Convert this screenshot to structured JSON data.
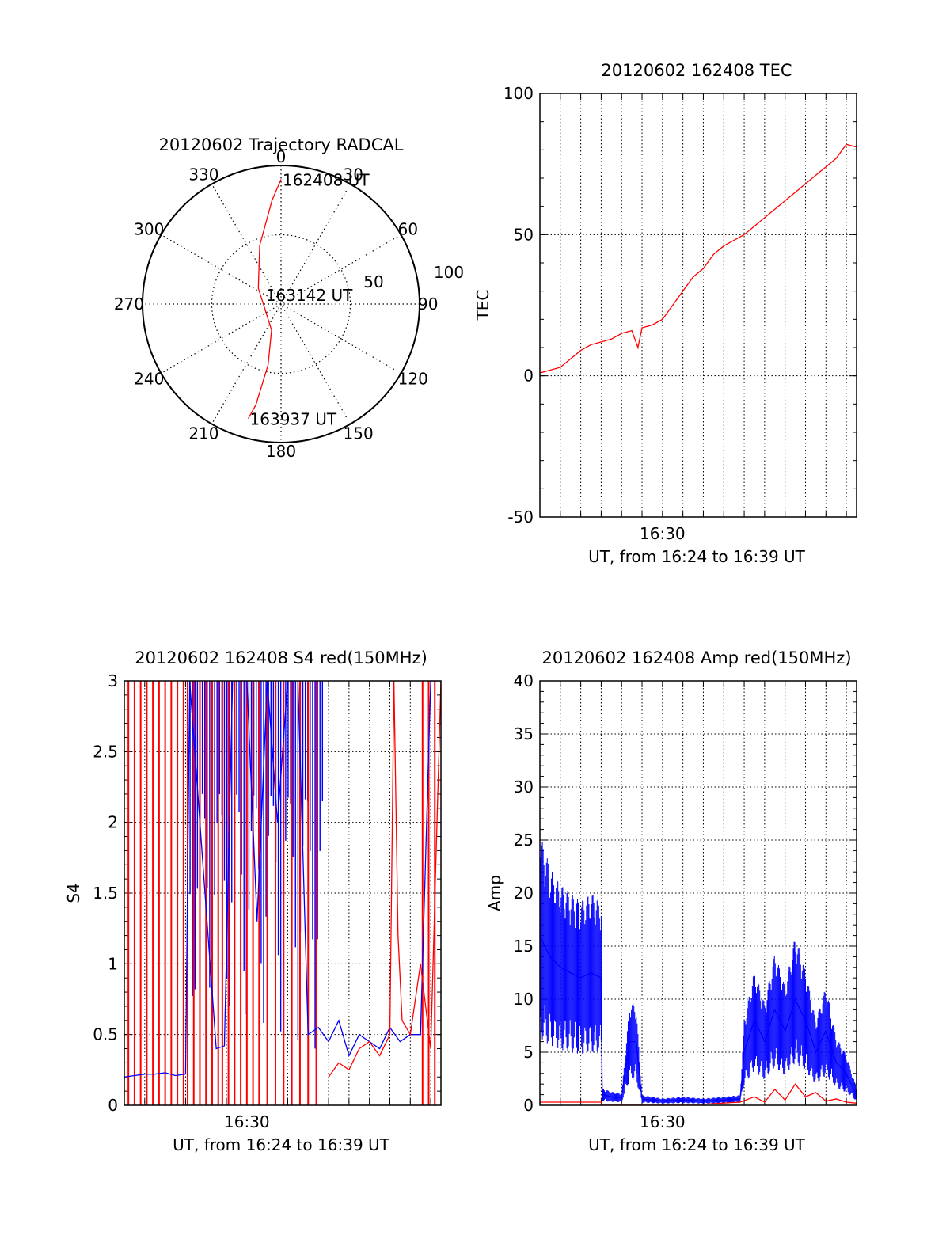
{
  "chart_data": [
    {
      "type": "polar",
      "title": "20120602 Trajectory RADCAL",
      "angle_labels": [
        "0",
        "30",
        "60",
        "90",
        "120",
        "150",
        "180",
        "210",
        "240",
        "270",
        "300",
        "330"
      ],
      "radial_labels": [
        "50",
        "100"
      ],
      "radial_max": 100,
      "trajectory": {
        "color": "#ff0000",
        "points": [
          {
            "az": 0,
            "r": 90
          },
          {
            "az": 355,
            "r": 75
          },
          {
            "az": 340,
            "r": 45
          },
          {
            "az": 305,
            "r": 20
          },
          {
            "az": 200,
            "r": 20
          },
          {
            "az": 192,
            "r": 45
          },
          {
            "az": 194,
            "r": 75
          },
          {
            "az": 196,
            "r": 86
          }
        ],
        "annotations": [
          {
            "text": "162408 UT",
            "az": 0,
            "r": 90
          },
          {
            "text": "163142 UT",
            "az": 300,
            "r": 14
          },
          {
            "text": "163937 UT",
            "az": 196,
            "r": 86
          }
        ]
      }
    },
    {
      "type": "line",
      "title": "20120602 162408 TEC",
      "xlabel": "UT, from 16:24 to 16:39 UT",
      "ylabel": "TEC",
      "xlim": [
        0,
        15.5
      ],
      "ylim": [
        -50,
        100
      ],
      "yticks": [
        -50,
        0,
        50,
        100
      ],
      "xtick_labels": [
        {
          "label": "16:30",
          "x": 6
        }
      ],
      "series": [
        {
          "color": "#ff0000",
          "x": [
            0,
            0.5,
            1,
            1.5,
            2,
            2.5,
            3,
            3.5,
            4,
            4.5,
            4.8,
            5,
            5.5,
            6,
            6.5,
            7,
            7.5,
            8,
            8.5,
            9,
            9.5,
            10,
            10.5,
            11,
            11.5,
            12,
            12.5,
            13,
            13.5,
            14,
            14.5,
            15,
            15.5
          ],
          "y": [
            1,
            2,
            3,
            6,
            9,
            11,
            12,
            13,
            15,
            16,
            10,
            17,
            18,
            20,
            25,
            30,
            35,
            38,
            43,
            46,
            48,
            50,
            53,
            56,
            59,
            62,
            65,
            68,
            71,
            74,
            77,
            82,
            81
          ]
        }
      ]
    },
    {
      "type": "line",
      "title": "20120602 162408 S4 red(150MHz)",
      "xlabel": "UT, from 16:24 to 16:39 UT",
      "ylabel": "S4",
      "xlim": [
        0,
        15.5
      ],
      "ylim": [
        0,
        3
      ],
      "yticks": [
        0,
        0.5,
        1,
        1.5,
        2,
        2.5,
        3
      ],
      "ytick_labels": [
        "0",
        "0.5",
        "1",
        "1.5",
        "2",
        "2.5",
        "3"
      ],
      "xtick_labels": [
        {
          "label": "16:30",
          "x": 6
        }
      ],
      "series": [
        {
          "color": "#0000ff",
          "x": [
            0,
            0.5,
            1,
            1.5,
            2,
            2.5,
            3,
            3.2,
            4.5,
            4.9,
            5.3,
            6,
            6.5,
            7,
            7.5,
            8,
            8.5,
            9,
            9.5,
            10,
            10.5,
            11,
            11.5,
            12,
            12.5,
            13,
            13.5,
            14,
            14.5,
            15,
            15.5
          ],
          "y": [
            0.2,
            0.21,
            0.22,
            0.22,
            0.23,
            0.21,
            0.22,
            3,
            0.4,
            0.42,
            3,
            3,
            1.3,
            3,
            2,
            3,
            3,
            0.5,
            0.55,
            0.45,
            0.6,
            0.35,
            0.5,
            0.45,
            0.4,
            0.55,
            0.45,
            0.5,
            0.5,
            3,
            3
          ]
        },
        {
          "color": "#ff0000",
          "x": [
            10,
            10.5,
            11,
            11.5,
            12,
            12.5,
            13,
            13.2,
            13.4,
            13.6,
            14,
            14.5,
            15,
            15.5
          ],
          "y": [
            0.2,
            0.3,
            0.25,
            0.4,
            0.45,
            0.35,
            0.5,
            3,
            1.2,
            0.6,
            0.5,
            1.0,
            0.4,
            3
          ]
        }
      ],
      "red_spikes_x": [
        0.2,
        0.5,
        0.8,
        1.1,
        1.4,
        1.7,
        2.0,
        2.3,
        2.6,
        2.9,
        3.1,
        3.4,
        3.7,
        4.0,
        4.3,
        4.6,
        4.8,
        5.1,
        5.4,
        5.7,
        6.0,
        6.3,
        6.6,
        7.0,
        7.4,
        7.8,
        8.2,
        8.6,
        9.0,
        9.4,
        14.6,
        14.9,
        15.2
      ],
      "blue_band_x": [
        3.1,
        9.8
      ]
    },
    {
      "type": "line",
      "title": "20120602 162408 Amp red(150MHz)",
      "xlabel": "UT, from 16:24 to 16:39 UT",
      "ylabel": "Amp",
      "xlim": [
        0,
        15.5
      ],
      "ylim": [
        0,
        40
      ],
      "yticks": [
        0,
        5,
        10,
        15,
        20,
        25,
        30,
        35,
        40
      ],
      "xtick_labels": [
        {
          "label": "16:30",
          "x": 6
        }
      ],
      "series": [
        {
          "color": "#0000ff",
          "x": [
            0,
            0.5,
            1,
            1.5,
            2,
            2.5,
            3,
            3.05,
            3.5,
            4,
            4.4,
            4.7,
            5,
            5.5,
            6,
            7,
            8,
            9,
            9.8,
            10,
            10.5,
            11,
            11.5,
            12,
            12.5,
            13,
            13.5,
            14,
            14.5,
            15,
            15.5
          ],
          "y": [
            16,
            14,
            13,
            12.5,
            12,
            12.5,
            12,
            1,
            0.8,
            0.7,
            6,
            6,
            0.6,
            0.5,
            0.4,
            0.5,
            0.4,
            0.5,
            0.6,
            5,
            8,
            6,
            9,
            7,
            10,
            8,
            5,
            7,
            4,
            3,
            1
          ]
        },
        {
          "color": "#ff0000",
          "x": [
            0,
            3,
            3.05,
            8,
            9.8,
            10.5,
            11,
            11.5,
            12,
            12.5,
            13,
            13.5,
            14,
            14.5,
            15,
            15.5
          ],
          "y": [
            0.3,
            0.3,
            0.1,
            0.1,
            0.3,
            0.8,
            0.3,
            1.5,
            0.5,
            2,
            0.8,
            1.2,
            0.4,
            0.6,
            0.3,
            0.2
          ]
        }
      ]
    }
  ]
}
